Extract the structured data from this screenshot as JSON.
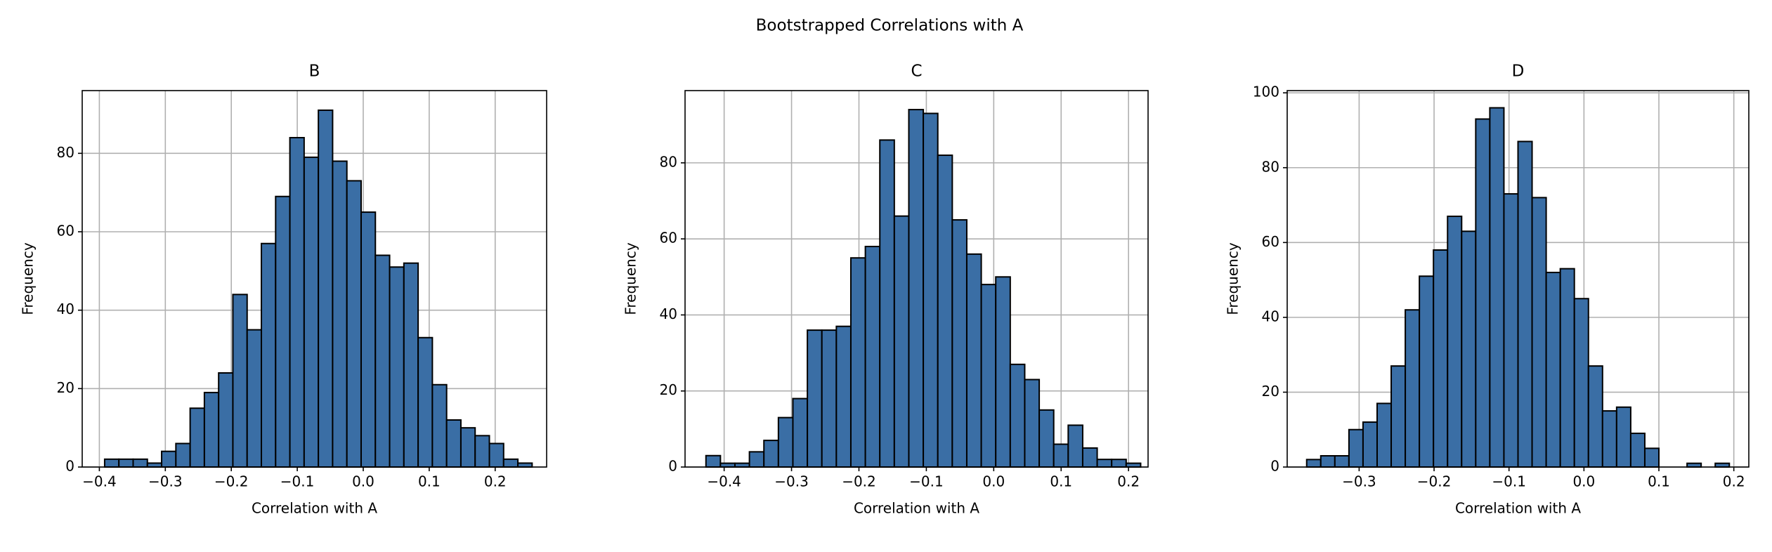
{
  "title": "Bootstrapped Correlations with A",
  "chart_data": [
    {
      "type": "histogram",
      "title": "B",
      "xlabel": "Correlation with A",
      "ylabel": "Frequency",
      "color": "#3a6ea5",
      "edgecolor": "#000000",
      "grid": true,
      "bins": [
        -0.392,
        -0.3704,
        -0.3488,
        -0.3272,
        -0.3056,
        -0.284,
        -0.2624,
        -0.2408,
        -0.2192,
        -0.1976,
        -0.176,
        -0.1544,
        -0.1328,
        -0.1112,
        -0.0896,
        -0.068,
        -0.0464,
        -0.0248,
        -0.0032,
        0.0184,
        0.04,
        0.0616,
        0.0832,
        0.1048,
        0.1264,
        0.148,
        0.1696,
        0.1912,
        0.2128,
        0.2344,
        0.256
      ],
      "values": [
        2,
        2,
        2,
        1,
        4,
        6,
        15,
        19,
        24,
        44,
        35,
        57,
        69,
        84,
        79,
        91,
        78,
        73,
        65,
        54,
        51,
        52,
        33,
        21,
        12,
        10,
        8,
        6,
        2,
        1
      ],
      "xlim": [
        -0.426,
        0.278
      ],
      "ylim": [
        0,
        96
      ],
      "xticks": [
        {
          "value": -0.4,
          "label": "−0.4"
        },
        {
          "value": -0.3,
          "label": "−0.3"
        },
        {
          "value": -0.2,
          "label": "−0.2"
        },
        {
          "value": -0.1,
          "label": "−0.1"
        },
        {
          "value": 0,
          "label": "0.0"
        },
        0.1,
        0.2
      ],
      "yticks": [
        0,
        20,
        40,
        60,
        80
      ]
    },
    {
      "type": "histogram",
      "title": "C",
      "xlabel": "Correlation with A",
      "ylabel": "Frequency",
      "color": "#3a6ea5",
      "edgecolor": "#000000",
      "grid": true,
      "bins": [
        -0.427,
        -0.4055,
        -0.384,
        -0.3625,
        -0.341,
        -0.3195,
        -0.298,
        -0.2765,
        -0.255,
        -0.2335,
        -0.212,
        -0.1905,
        -0.169,
        -0.1475,
        -0.126,
        -0.1045,
        -0.083,
        -0.0615,
        -0.04,
        -0.0185,
        0.003,
        0.0245,
        0.046,
        0.0675,
        0.089,
        0.1105,
        0.132,
        0.1535,
        0.175,
        0.1965,
        0.218
      ],
      "values": [
        3,
        1,
        1,
        4,
        7,
        13,
        18,
        36,
        36,
        37,
        55,
        58,
        86,
        66,
        94,
        93,
        82,
        65,
        56,
        48,
        50,
        27,
        23,
        15,
        6,
        11,
        5,
        2,
        2,
        1
      ],
      "xlim": [
        -0.458,
        0.229
      ],
      "ylim": [
        0,
        99
      ],
      "xticks": [
        {
          "value": -0.4,
          "label": "−0.4"
        },
        {
          "value": -0.3,
          "label": "−0.3"
        },
        {
          "value": -0.2,
          "label": "−0.2"
        },
        {
          "value": -0.1,
          "label": "−0.1"
        },
        {
          "value": 0,
          "label": "0.0"
        },
        0.1,
        0.2
      ],
      "yticks": [
        0,
        20,
        40,
        60,
        80
      ]
    },
    {
      "type": "histogram",
      "title": "D",
      "xlabel": "Correlation with A",
      "ylabel": "Frequency",
      "color": "#3a6ea5",
      "edgecolor": "#000000",
      "grid": true,
      "bins": [
        -0.37,
        -0.3512,
        -0.3324,
        -0.3136,
        -0.2948,
        -0.276,
        -0.2572,
        -0.2384,
        -0.2196,
        -0.2008,
        -0.182,
        -0.1632,
        -0.1444,
        -0.1256,
        -0.1068,
        -0.088,
        -0.0692,
        -0.0504,
        -0.0316,
        -0.0128,
        0.006,
        0.0248,
        0.0436,
        0.0624,
        0.0812,
        0.1,
        0.1188,
        0.1376,
        0.1564,
        0.1752,
        0.194
      ],
      "values": [
        2,
        3,
        3,
        10,
        12,
        17,
        27,
        42,
        51,
        58,
        67,
        63,
        93,
        96,
        73,
        87,
        72,
        52,
        53,
        45,
        27,
        15,
        16,
        9,
        5,
        0,
        0,
        1,
        0,
        1
      ],
      "xlim": [
        -0.396,
        0.22
      ],
      "ylim": [
        0,
        100.6
      ],
      "xticks": [
        {
          "value": -0.3,
          "label": "−0.3"
        },
        {
          "value": -0.2,
          "label": "−0.2"
        },
        {
          "value": -0.1,
          "label": "−0.1"
        },
        {
          "value": 0,
          "label": "0.0"
        },
        0.1,
        0.2
      ],
      "yticks": [
        0,
        20,
        40,
        60,
        80,
        100
      ]
    }
  ]
}
